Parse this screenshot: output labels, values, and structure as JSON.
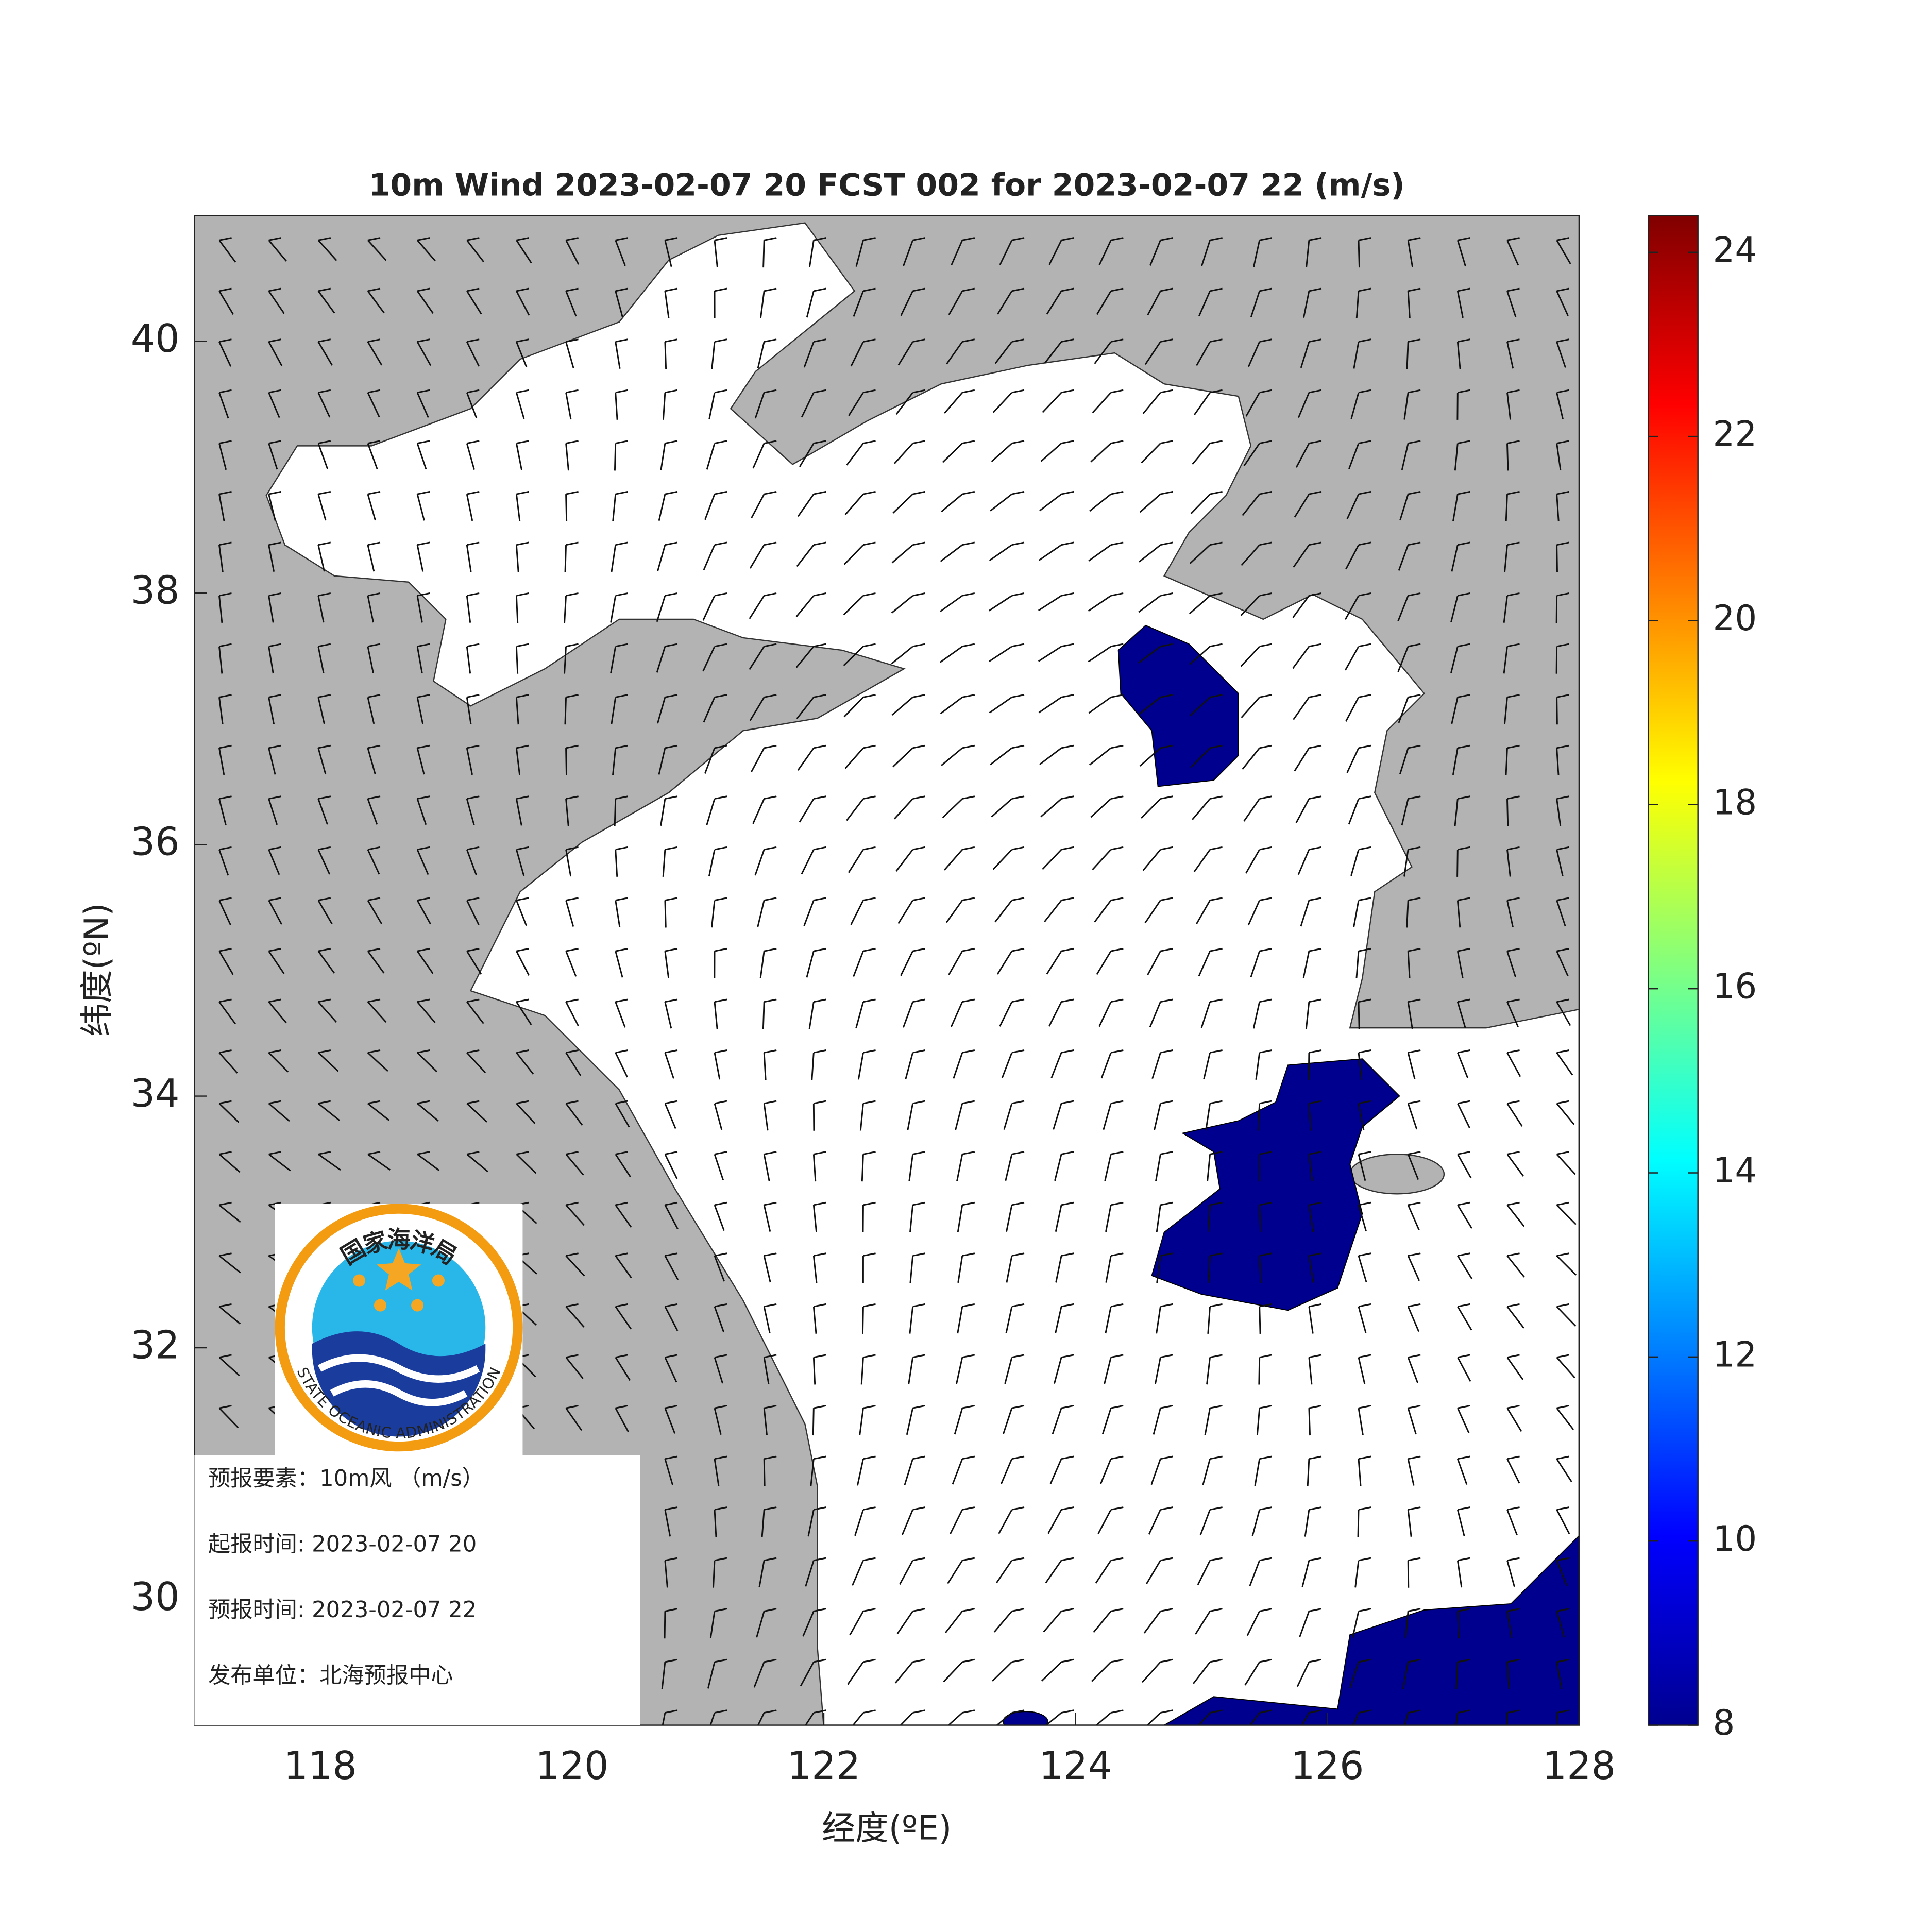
{
  "chart_data": {
    "type": "map",
    "title": "10m Wind 2023-02-07 20 FCST 002 for 2023-02-07 22 (m/s)",
    "xlabel": "经度(ºE)",
    "ylabel": "纬度(ºN)",
    "xlim": [
      117,
      128
    ],
    "ylim": [
      29,
      41
    ],
    "xticks": [
      118,
      120,
      122,
      124,
      126,
      128
    ],
    "yticks": [
      30,
      32,
      34,
      36,
      38,
      40
    ],
    "land_color": "#b3b3b3",
    "sea_color": "#ffffff",
    "colorbar": {
      "lim": [
        8,
        24.4
      ],
      "ticks": [
        8,
        10,
        12,
        14,
        16,
        18,
        20,
        22,
        24
      ],
      "colors": [
        "#00008f",
        "#0000ff",
        "#0080ff",
        "#00ffff",
        "#80ff80",
        "#ffff00",
        "#ff8000",
        "#ff0000",
        "#800000"
      ]
    },
    "logo": {
      "name_cn": "国家海洋局",
      "name_en": "STATE OCEANIC ADMINISTRATION"
    },
    "info": [
      "预报要素：10m风 （m/s）",
      "起报时间: 2023-02-07 20",
      "预报时间: 2023-02-07 22",
      "发布单位：北海预报中心"
    ]
  }
}
